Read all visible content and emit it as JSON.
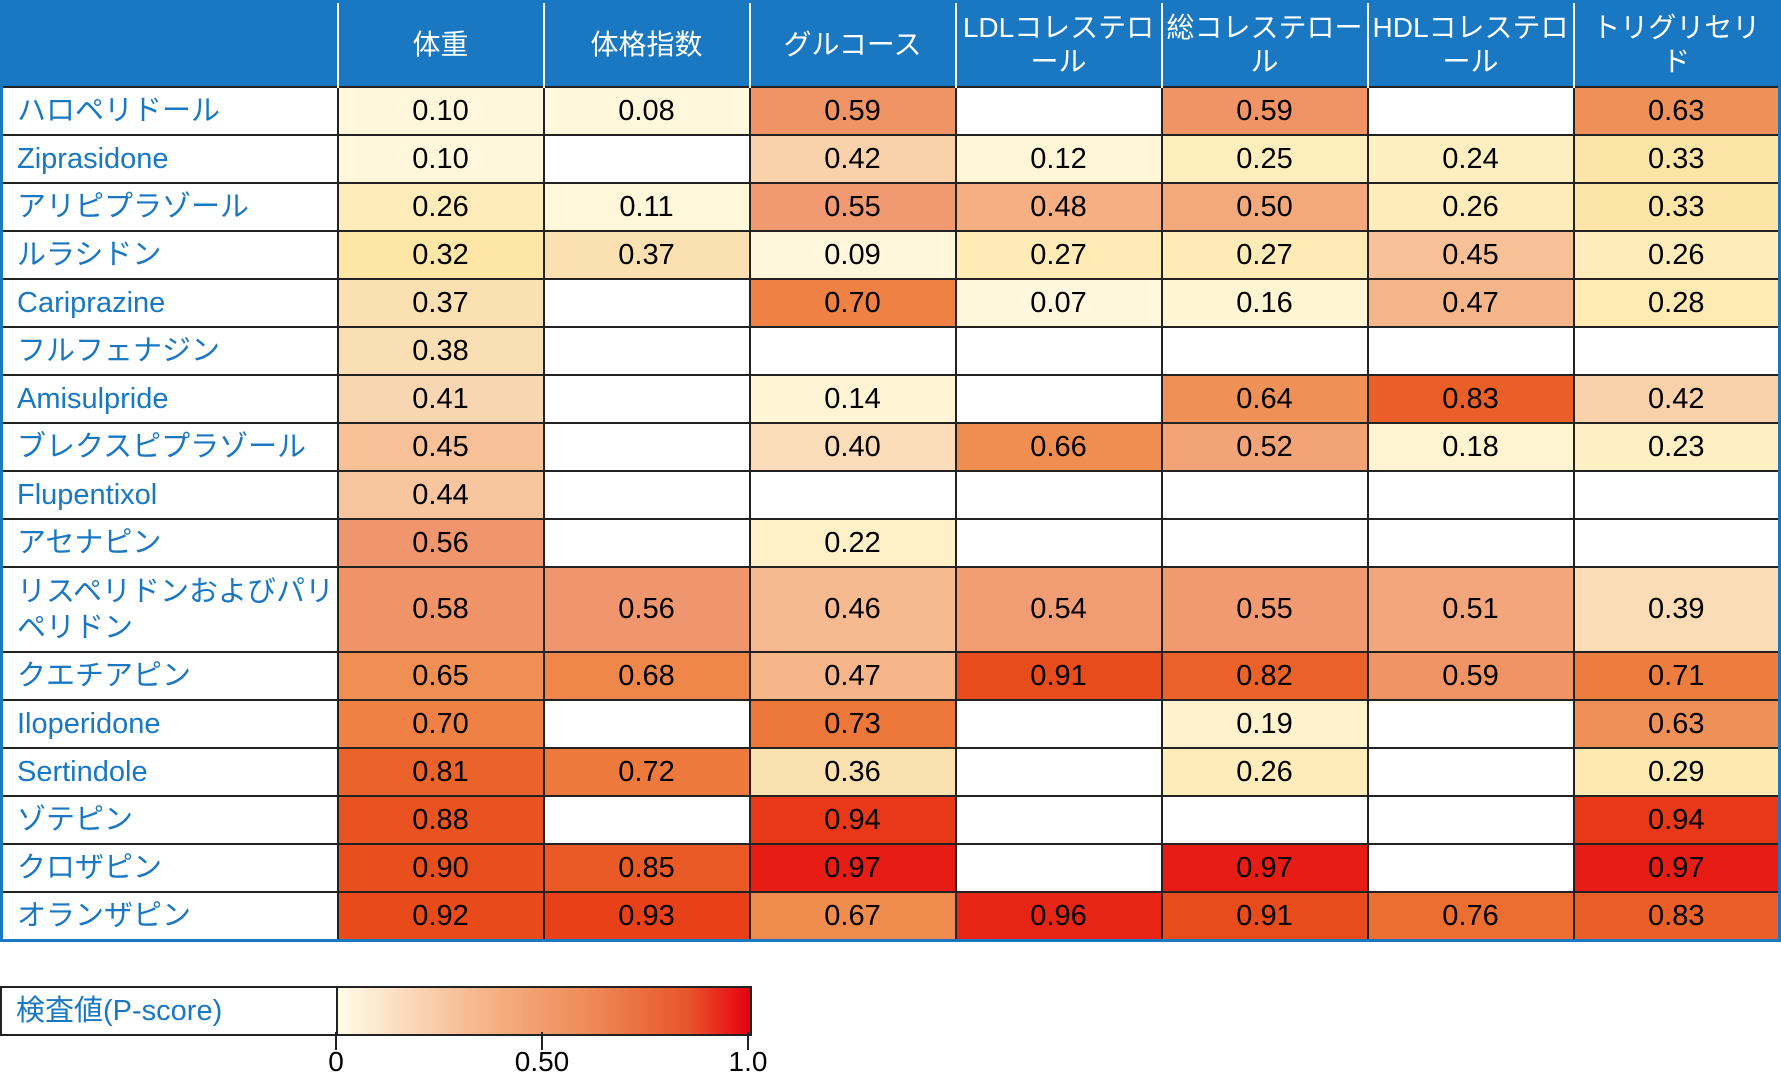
{
  "chart_data": {
    "type": "heatmap",
    "columns": [
      "体重",
      "体格指数",
      "グルコース",
      "LDLコレステロール",
      "総コレステロール",
      "HDLコレステロール",
      "トリグリセリド"
    ],
    "rows": [
      {
        "name": "ハロペリドール",
        "values": [
          0.1,
          0.08,
          0.59,
          null,
          0.59,
          null,
          0.63
        ]
      },
      {
        "name": "Ziprasidone",
        "values": [
          0.1,
          null,
          0.42,
          0.12,
          0.25,
          0.24,
          0.33
        ]
      },
      {
        "name": "アリピプラゾール",
        "values": [
          0.26,
          0.11,
          0.55,
          0.48,
          0.5,
          0.26,
          0.33
        ]
      },
      {
        "name": "ルラシドン",
        "values": [
          0.32,
          0.37,
          0.09,
          0.27,
          0.27,
          0.45,
          0.26
        ]
      },
      {
        "name": "Cariprazine",
        "values": [
          0.37,
          null,
          0.7,
          0.07,
          0.16,
          0.47,
          0.28
        ]
      },
      {
        "name": "フルフェナジン",
        "values": [
          0.38,
          null,
          null,
          null,
          null,
          null,
          null
        ]
      },
      {
        "name": "Amisulpride",
        "values": [
          0.41,
          null,
          0.14,
          null,
          0.64,
          0.83,
          0.42
        ]
      },
      {
        "name": "ブレクスピプラゾール",
        "values": [
          0.45,
          null,
          0.4,
          0.66,
          0.52,
          0.18,
          0.23
        ]
      },
      {
        "name": "Flupentixol",
        "values": [
          0.44,
          null,
          null,
          null,
          null,
          null,
          null
        ]
      },
      {
        "name": "アセナピン",
        "values": [
          0.56,
          null,
          0.22,
          null,
          null,
          null,
          null
        ]
      },
      {
        "name": "リスペリドンおよびパリペリドン",
        "values": [
          0.58,
          0.56,
          0.46,
          0.54,
          0.55,
          0.51,
          0.39
        ]
      },
      {
        "name": "クエチアピン",
        "values": [
          0.65,
          0.68,
          0.47,
          0.91,
          0.82,
          0.59,
          0.71
        ]
      },
      {
        "name": "Iloperidone",
        "values": [
          0.7,
          null,
          0.73,
          null,
          0.19,
          null,
          0.63
        ]
      },
      {
        "name": "Sertindole",
        "values": [
          0.81,
          0.72,
          0.36,
          null,
          0.26,
          null,
          0.29
        ]
      },
      {
        "name": "ゾテピン",
        "values": [
          0.88,
          null,
          0.94,
          null,
          null,
          null,
          0.94
        ]
      },
      {
        "name": "クロザピン",
        "values": [
          0.9,
          0.85,
          0.97,
          null,
          0.97,
          null,
          0.97
        ]
      },
      {
        "name": "オランザピン",
        "values": [
          0.92,
          0.93,
          0.67,
          0.96,
          0.91,
          0.76,
          0.83
        ]
      }
    ],
    "legend": {
      "title": "検査値(P-score)",
      "ticks": [
        "0",
        "0.50",
        "1.0"
      ],
      "range": [
        0,
        1
      ]
    },
    "colors": {
      "header": "#1a77c2",
      "low": "#fffbe8",
      "high": "#e60012"
    }
  }
}
